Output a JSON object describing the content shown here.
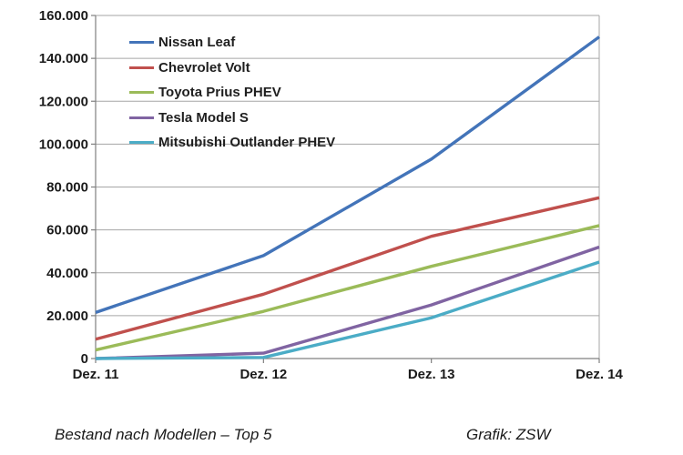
{
  "figure": {
    "captions": {
      "title": "Bestand nach Modellen – Top 5",
      "credit": "Grafik: ZSW"
    }
  },
  "chart_data": {
    "type": "line",
    "categories": [
      "Dez. 11",
      "Dez. 12",
      "Dez. 13",
      "Dez. 14"
    ],
    "series": [
      {
        "name": "Nissan Leaf",
        "color": "#4374B9",
        "values": [
          21500,
          48000,
          93000,
          150000
        ]
      },
      {
        "name": "Chevrolet Volt",
        "color": "#C0504D",
        "values": [
          9000,
          30000,
          57000,
          75000
        ]
      },
      {
        "name": "Toyota Prius PHEV",
        "color": "#9BBB59",
        "values": [
          4000,
          22000,
          43000,
          62000
        ]
      },
      {
        "name": "Tesla Model S",
        "color": "#8064A2",
        "values": [
          0,
          2500,
          25000,
          52000
        ]
      },
      {
        "name": "Mitsubishi Outlander PHEV",
        "color": "#4BACC6",
        "values": [
          0,
          500,
          19000,
          45000
        ]
      }
    ],
    "ylim": [
      0,
      160000
    ],
    "ytick_step": 20000,
    "ytick_labels": [
      "0",
      "20.000",
      "40.000",
      "60.000",
      "80.000",
      "100.000",
      "120.000",
      "140.000",
      "160.000"
    ],
    "xlabel": "",
    "ylabel": "",
    "title": "",
    "grid": true,
    "legend_position": "top-left-inside",
    "axis_color": "#808080",
    "grid_color": "#A6A6A6",
    "tick_text_color": "#1a1a1a"
  }
}
